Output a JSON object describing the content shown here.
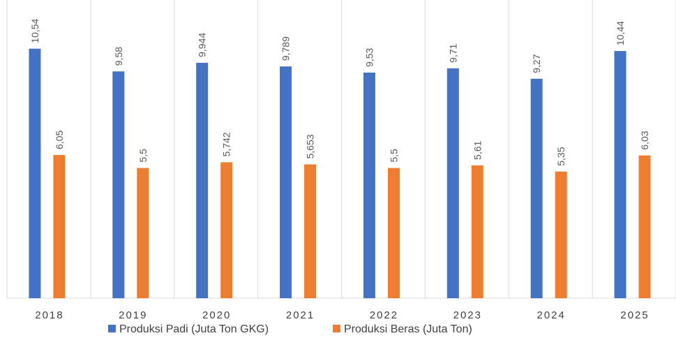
{
  "chart_data": {
    "type": "bar",
    "categories": [
      "2018",
      "2019",
      "2020",
      "2021",
      "2022",
      "2023",
      "2024",
      "2025"
    ],
    "series": [
      {
        "name": "Produksi Padi (Juta Ton GKG)",
        "color": "#4472C4",
        "values": [
          10.54,
          9.58,
          9.944,
          9.789,
          9.53,
          9.71,
          9.27,
          10.44
        ],
        "labels": [
          "10,54",
          "9,58",
          "9,944",
          "9,789",
          "9,53",
          "9,71",
          "9,27",
          "10,44"
        ]
      },
      {
        "name": "Produksi Beras (Juta Ton)",
        "color": "#ED7D31",
        "values": [
          6.05,
          5.5,
          5.742,
          5.653,
          5.5,
          5.61,
          5.35,
          6.03
        ],
        "labels": [
          "6,05",
          "5,5",
          "5,742",
          "5,653",
          "5,5",
          "5,61",
          "5,35",
          "6,03"
        ]
      }
    ],
    "ylim": [
      0,
      12
    ],
    "grid": "vertical category separators",
    "legend": "bottom"
  }
}
